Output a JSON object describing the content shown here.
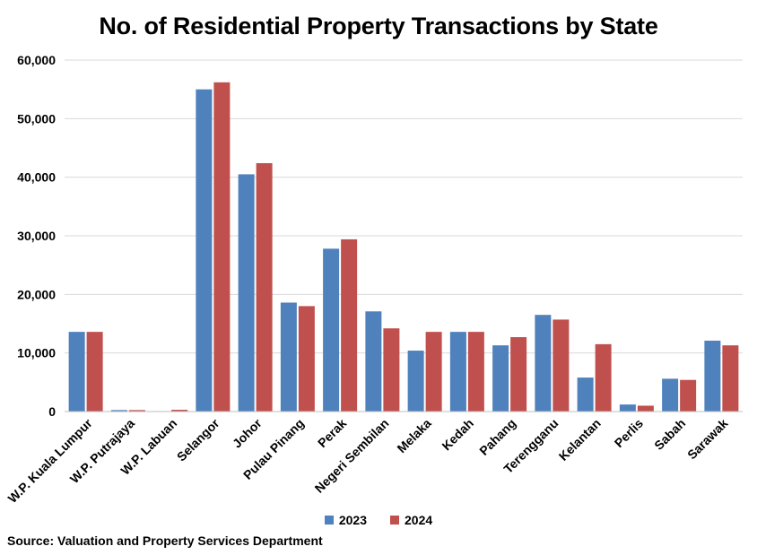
{
  "chart_data": {
    "type": "bar",
    "title": "No. of Residential Property Transactions by State",
    "categories": [
      "W.P. Kuala Lumpur",
      "W.P. Putrajaya",
      "W.P. Labuan",
      "Selangor",
      "Johor",
      "Pulau Pinang",
      "Perak",
      "Negeri Sembilan",
      "Melaka",
      "Kedah",
      "Pahang",
      "Terengganu",
      "Kelantan",
      "Perlis",
      "Sabah",
      "Sarawak"
    ],
    "series": [
      {
        "name": "2023",
        "color": "#4f81bd",
        "values": [
          13600,
          250,
          80,
          55000,
          40500,
          18600,
          27800,
          17100,
          10400,
          13600,
          11300,
          16500,
          5800,
          1200,
          5600,
          12100
        ]
      },
      {
        "name": "2024",
        "color": "#c0504d",
        "values": [
          13600,
          250,
          300,
          56200,
          42400,
          18000,
          29400,
          14200,
          13600,
          13600,
          12700,
          15700,
          11500,
          1000,
          5400,
          11300
        ]
      }
    ],
    "ylim": [
      0,
      60000
    ],
    "yticks": [
      "0",
      "10,000",
      "20,000",
      "30,000",
      "40,000",
      "50,000",
      "60,000"
    ],
    "ytick_values": [
      0,
      10000,
      20000,
      30000,
      40000,
      50000,
      60000
    ],
    "grid": true,
    "legend_position": "bottom",
    "xlabel": "",
    "ylabel": ""
  },
  "legend": {
    "item_2023": "2023",
    "item_2024": "2024",
    "color_2023": "#4f81bd",
    "color_2024": "#c0504d"
  },
  "source": "Source: Valuation and Property Services Department"
}
